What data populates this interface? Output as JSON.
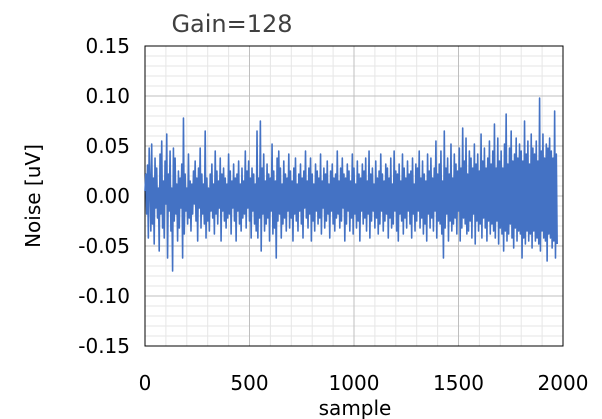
{
  "chart_data": {
    "type": "line",
    "title": "Gain=128",
    "xlabel": "sample",
    "ylabel": "Noise [uV]",
    "xlim": [
      0,
      2000
    ],
    "ylim": [
      -0.15,
      0.15
    ],
    "x_ticks": [
      "0",
      "500",
      "1000",
      "1500",
      "2000"
    ],
    "y_ticks": [
      "0.15",
      "0.10",
      "0.05",
      "0.00",
      "-0.05",
      "-0.10",
      "-0.15"
    ],
    "x_minor_step": 100,
    "y_minor_step": 0.01,
    "grid": true,
    "legend": "none",
    "series": [
      {
        "color": "#4472C4",
        "x_start": 0,
        "x_step": 4,
        "values": [
          0.005,
          0.022,
          -0.018,
          0.031,
          -0.042,
          0.048,
          0.012,
          -0.035,
          0.052,
          -0.028,
          0.018,
          -0.048,
          0.038,
          -0.012,
          0.028,
          -0.022,
          0.008,
          -0.055,
          0.042,
          -0.018,
          0.055,
          -0.032,
          0.015,
          -0.042,
          0.035,
          -0.008,
          0.062,
          -0.062,
          0.022,
          -0.015,
          0.045,
          -0.035,
          0.008,
          -0.075,
          0.048,
          -0.025,
          0.038,
          -0.018,
          0.012,
          -0.045,
          0.025,
          -0.032,
          0.018,
          -0.012,
          0.032,
          -0.062,
          0.078,
          -0.038,
          0.022,
          -0.015,
          0.008,
          -0.028,
          0.042,
          -0.022,
          0.015,
          -0.035,
          0.012,
          -0.018,
          0.025,
          -0.008,
          0.035,
          -0.025,
          0.018,
          -0.045,
          0.028,
          -0.012,
          0.048,
          -0.032,
          0.022,
          -0.018,
          0.012,
          -0.028,
          0.065,
          -0.042,
          0.018,
          -0.025,
          0.008,
          -0.035,
          0.022,
          -0.015,
          0.032,
          -0.022,
          0.012,
          -0.038,
          0.045,
          -0.018,
          0.025,
          -0.028,
          0.015,
          -0.012,
          0.038,
          -0.045,
          0.022,
          -0.015,
          0.028,
          -0.025,
          0.018,
          -0.032,
          0.012,
          -0.022,
          0.042,
          -0.018,
          0.025,
          -0.038,
          0.015,
          -0.012,
          0.032,
          -0.025,
          0.018,
          -0.045,
          0.022,
          -0.015,
          0.035,
          -0.028,
          0.012,
          -0.035,
          0.028,
          -0.022,
          0.015,
          -0.018,
          0.045,
          -0.032,
          0.025,
          -0.012,
          0.035,
          -0.025,
          0.018,
          -0.042,
          0.028,
          -0.015,
          0.022,
          -0.028,
          0.012,
          -0.035,
          0.065,
          -0.042,
          0.018,
          -0.022,
          0.075,
          -0.055,
          0.028,
          -0.018,
          0.042,
          -0.035,
          0.015,
          -0.028,
          0.032,
          -0.022,
          0.022,
          -0.045,
          0.018,
          -0.015,
          0.052,
          -0.038,
          0.025,
          -0.032,
          0.015,
          -0.062,
          0.038,
          -0.025,
          0.045,
          -0.018,
          0.028,
          -0.042,
          0.012,
          -0.028,
          0.035,
          -0.022,
          0.022,
          -0.035,
          0.018,
          -0.015,
          0.042,
          -0.032,
          0.025,
          -0.022,
          0.015,
          -0.045,
          0.028,
          -0.018,
          0.038,
          -0.025,
          0.012,
          -0.035,
          0.022,
          -0.015,
          0.032,
          -0.028,
          0.018,
          -0.042,
          0.025,
          -0.012,
          0.045,
          -0.022,
          0.015,
          -0.032,
          0.028,
          -0.018,
          0.038,
          -0.045,
          0.022,
          -0.025,
          0.012,
          -0.035,
          0.032,
          -0.015,
          0.025,
          -0.028,
          0.018,
          -0.022,
          0.042,
          -0.038,
          0.015,
          -0.012,
          0.028,
          -0.032,
          0.022,
          -0.025,
          0.035,
          -0.018,
          0.012,
          -0.042,
          0.025,
          -0.015,
          0.032,
          -0.028,
          0.018,
          -0.035,
          0.022,
          -0.022,
          0.045,
          -0.018,
          0.015,
          -0.032,
          0.028,
          -0.025,
          0.038,
          -0.012,
          0.022,
          -0.045,
          0.018,
          -0.028,
          0.032,
          -0.015,
          0.025,
          -0.035,
          0.015,
          -0.022,
          0.042,
          -0.038,
          0.028,
          -0.018,
          0.012,
          -0.032,
          0.035,
          -0.025,
          0.022,
          -0.045,
          0.018,
          -0.015,
          0.032,
          -0.028,
          0.025,
          -0.022,
          0.038,
          -0.035,
          0.015,
          -0.018,
          0.045,
          -0.042,
          0.022,
          -0.025,
          0.028,
          -0.015,
          0.012,
          -0.032,
          0.035,
          -0.022,
          0.018,
          -0.038,
          0.025,
          -0.028,
          0.042,
          -0.015,
          0.022,
          -0.035,
          0.015,
          -0.025,
          0.032,
          -0.018,
          0.028,
          -0.042,
          0.018,
          -0.022,
          0.038,
          -0.032,
          0.012,
          -0.028,
          0.045,
          -0.015,
          0.025,
          -0.035,
          0.022,
          -0.045,
          0.032,
          -0.018,
          0.015,
          -0.025,
          0.042,
          -0.038,
          0.028,
          -0.022,
          0.018,
          -0.032,
          0.035,
          -0.015,
          0.022,
          -0.028,
          0.025,
          -0.042,
          0.038,
          -0.018,
          0.012,
          -0.035,
          0.032,
          -0.025,
          0.028,
          -0.015,
          0.045,
          -0.032,
          0.018,
          -0.022,
          0.035,
          -0.038,
          0.022,
          -0.028,
          0.015,
          -0.045,
          0.042,
          -0.018,
          0.025,
          -0.032,
          0.038,
          -0.022,
          0.018,
          -0.035,
          0.028,
          -0.015,
          0.055,
          -0.042,
          0.022,
          -0.025,
          0.032,
          -0.028,
          0.045,
          -0.038,
          0.015,
          -0.062,
          0.065,
          -0.032,
          0.028,
          -0.018,
          0.038,
          -0.045,
          0.022,
          -0.025,
          0.052,
          -0.035,
          0.018,
          -0.028,
          0.042,
          -0.022,
          0.032,
          -0.038,
          0.025,
          -0.015,
          0.048,
          -0.045,
          0.028,
          -0.032,
          0.068,
          -0.022,
          0.035,
          -0.028,
          0.058,
          -0.038,
          0.022,
          -0.035,
          0.045,
          -0.025,
          0.038,
          -0.042,
          0.028,
          -0.018,
          0.052,
          -0.048,
          0.032,
          -0.025,
          0.042,
          -0.035,
          0.025,
          -0.028,
          0.062,
          -0.042,
          0.035,
          -0.022,
          0.048,
          -0.032,
          0.028,
          -0.045,
          0.038,
          -0.025,
          0.055,
          -0.038,
          0.032,
          -0.028,
          0.045,
          -0.035,
          0.072,
          -0.042,
          0.028,
          -0.025,
          0.058,
          -0.048,
          0.035,
          -0.032,
          0.045,
          -0.038,
          0.028,
          -0.055,
          0.052,
          -0.035,
          0.082,
          -0.045,
          0.032,
          -0.038,
          0.048,
          -0.028,
          0.065,
          -0.042,
          0.035,
          -0.052,
          0.042,
          -0.032,
          0.058,
          -0.045,
          0.038,
          -0.035,
          0.052,
          -0.038,
          0.045,
          -0.062,
          0.035,
          -0.042,
          0.075,
          -0.048,
          0.042,
          -0.035,
          0.055,
          -0.045,
          0.032,
          -0.038,
          0.062,
          -0.052,
          0.048,
          -0.035,
          0.042,
          -0.045,
          0.055,
          -0.042,
          0.035,
          -0.048,
          0.098,
          -0.055,
          0.045,
          -0.035,
          0.062,
          -0.042,
          0.038,
          -0.045,
          0.052,
          -0.065,
          0.048,
          -0.038,
          0.058,
          -0.042,
          0.045,
          -0.052,
          0.038,
          -0.045,
          0.085,
          -0.062,
          0.042,
          -0.048
        ]
      }
    ]
  }
}
